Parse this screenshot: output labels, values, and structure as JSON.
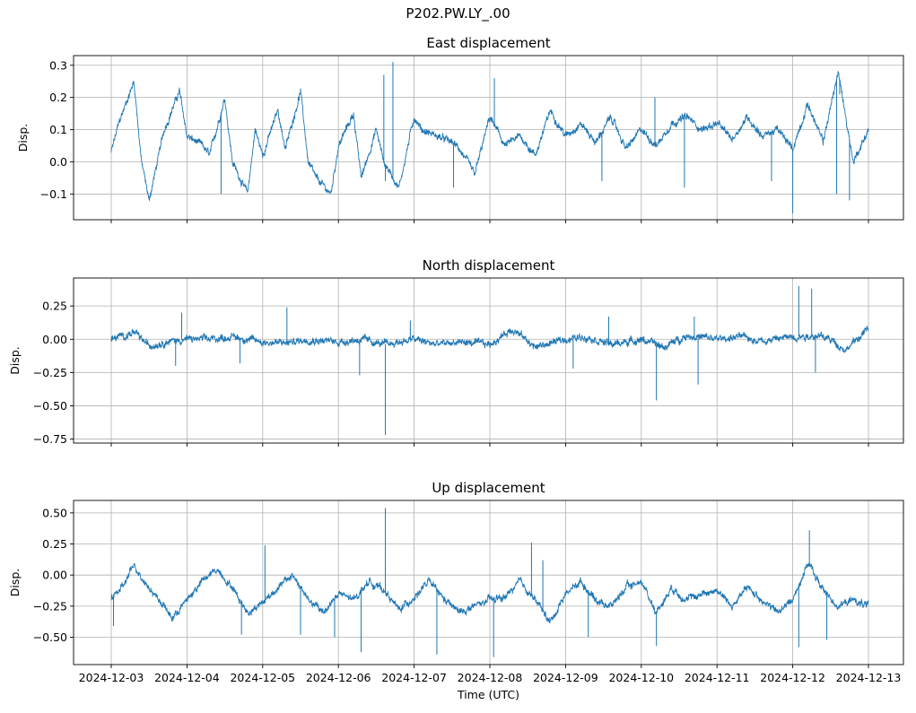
{
  "suptitle": "P202.PW.LY_.00",
  "chart_data": [
    {
      "type": "line",
      "title": "East displacement",
      "xlabel": "",
      "ylabel": "Disp.",
      "series_color": "#1f77b4",
      "grid": true,
      "ylim": [
        -0.18,
        0.33
      ],
      "yticks": [
        -0.1,
        0.0,
        0.1,
        0.2,
        0.3
      ],
      "ytick_labels": [
        "−0.1",
        "0.0",
        "0.1",
        "0.2",
        "0.3"
      ],
      "x_range_days": [
        0,
        10
      ],
      "anchor_days": [
        0,
        0.1,
        0.3,
        0.4,
        0.5,
        0.7,
        0.9,
        1.0,
        1.2,
        1.3,
        1.5,
        1.6,
        1.8,
        1.9,
        2.0,
        2.2,
        2.3,
        2.5,
        2.6,
        2.7,
        2.9,
        3.0,
        3.2,
        3.3,
        3.5,
        3.6,
        3.8,
        4.0,
        4.1,
        4.3,
        4.5,
        4.6,
        4.8,
        5.0,
        5.2,
        5.4,
        5.6,
        5.8,
        6.0,
        6.2,
        6.4,
        6.6,
        6.8,
        7.0,
        7.2,
        7.4,
        7.6,
        7.8,
        8.0,
        8.2,
        8.4,
        8.6,
        8.8,
        9.0,
        9.2,
        9.4,
        9.6,
        9.8,
        10.0
      ],
      "anchor_values": [
        0.03,
        0.12,
        0.25,
        0.0,
        -0.12,
        0.1,
        0.22,
        0.08,
        0.05,
        0.02,
        0.2,
        0.0,
        -0.1,
        0.1,
        0.02,
        0.16,
        0.04,
        0.22,
        0.0,
        -0.05,
        -0.1,
        0.05,
        0.15,
        -0.05,
        0.1,
        0.0,
        -0.08,
        0.14,
        0.1,
        0.08,
        0.06,
        0.04,
        -0.04,
        0.14,
        0.05,
        0.08,
        0.02,
        0.16,
        0.08,
        0.12,
        0.06,
        0.14,
        0.04,
        0.1,
        0.05,
        0.12,
        0.14,
        0.1,
        0.12,
        0.07,
        0.14,
        0.08,
        0.1,
        0.04,
        0.18,
        0.06,
        0.28,
        0.0,
        0.1
      ],
      "spikes": [
        [
          3.6,
          0.27
        ],
        [
          3.72,
          0.31
        ],
        [
          5.06,
          0.26
        ],
        [
          7.18,
          0.2
        ],
        [
          9.62,
          0.21
        ],
        [
          1.45,
          -0.1
        ],
        [
          3.62,
          -0.06
        ],
        [
          4.52,
          -0.08
        ],
        [
          6.48,
          -0.06
        ],
        [
          7.57,
          -0.08
        ],
        [
          8.72,
          -0.06
        ],
        [
          9.0,
          -0.16
        ],
        [
          9.58,
          -0.1
        ],
        [
          9.75,
          -0.12
        ]
      ]
    },
    {
      "type": "line",
      "title": "North displacement",
      "xlabel": "",
      "ylabel": "Disp.",
      "series_color": "#1f77b4",
      "grid": true,
      "ylim": [
        -0.78,
        0.46
      ],
      "yticks": [
        -0.75,
        -0.5,
        -0.25,
        0.0,
        0.25
      ],
      "ytick_labels": [
        "−0.75",
        "−0.50",
        "−0.25",
        "0.00",
        "0.25"
      ],
      "x_range_days": [
        0,
        10
      ],
      "anchor_days": [
        0,
        0.3,
        0.5,
        0.7,
        1.0,
        1.3,
        1.6,
        2.0,
        2.3,
        2.6,
        3.0,
        3.3,
        3.6,
        4.0,
        4.3,
        4.6,
        5.0,
        5.3,
        5.6,
        6.0,
        6.3,
        6.6,
        7.0,
        7.3,
        7.6,
        8.0,
        8.3,
        8.6,
        9.0,
        9.3,
        9.5,
        9.7,
        10.0
      ],
      "anchor_values": [
        0.0,
        0.05,
        -0.05,
        -0.02,
        0.0,
        0.0,
        0.02,
        -0.02,
        -0.03,
        0.0,
        -0.02,
        0.0,
        -0.04,
        0.0,
        -0.04,
        -0.02,
        -0.04,
        0.08,
        -0.06,
        0.0,
        0.02,
        -0.04,
        0.0,
        -0.06,
        0.03,
        0.0,
        0.02,
        -0.01,
        0.02,
        0.03,
        0.0,
        -0.08,
        0.08
      ],
      "spikes": [
        [
          0.93,
          0.2
        ],
        [
          2.32,
          0.24
        ],
        [
          3.95,
          0.14
        ],
        [
          6.57,
          0.17
        ],
        [
          7.7,
          0.17
        ],
        [
          9.08,
          0.4
        ],
        [
          9.25,
          0.38
        ],
        [
          0.85,
          -0.2
        ],
        [
          1.7,
          -0.18
        ],
        [
          3.28,
          -0.27
        ],
        [
          3.62,
          -0.72
        ],
        [
          7.2,
          -0.46
        ],
        [
          7.75,
          -0.34
        ],
        [
          6.1,
          -0.22
        ],
        [
          9.3,
          -0.25
        ]
      ]
    },
    {
      "type": "line",
      "title": "Up displacement",
      "xlabel": "Time (UTC)",
      "ylabel": "Disp.",
      "series_color": "#1f77b4",
      "grid": true,
      "ylim": [
        -0.72,
        0.6
      ],
      "yticks": [
        -0.5,
        -0.25,
        0.0,
        0.25,
        0.5
      ],
      "ytick_labels": [
        "−0.50",
        "−0.25",
        "0.00",
        "0.25",
        "0.50"
      ],
      "x_range_days": [
        0,
        10
      ],
      "x_tick_labels": [
        "2024-12-03",
        "2024-12-04",
        "2024-12-05",
        "2024-12-06",
        "2024-12-07",
        "2024-12-08",
        "2024-12-09",
        "2024-12-10",
        "2024-12-11",
        "2024-12-12",
        "2024-12-13"
      ],
      "anchor_days": [
        0,
        0.15,
        0.3,
        0.5,
        0.7,
        0.8,
        1.0,
        1.2,
        1.4,
        1.6,
        1.8,
        2.0,
        2.2,
        2.4,
        2.6,
        2.8,
        3.0,
        3.2,
        3.4,
        3.6,
        3.8,
        4.0,
        4.2,
        4.4,
        4.6,
        4.8,
        5.0,
        5.2,
        5.4,
        5.6,
        5.8,
        6.0,
        6.2,
        6.4,
        6.6,
        6.8,
        7.0,
        7.2,
        7.4,
        7.6,
        7.8,
        8.0,
        8.2,
        8.4,
        8.6,
        8.8,
        9.0,
        9.2,
        9.4,
        9.6,
        9.8,
        10.0
      ],
      "anchor_values": [
        -0.18,
        -0.1,
        0.08,
        -0.1,
        -0.25,
        -0.35,
        -0.2,
        -0.05,
        0.05,
        -0.1,
        -0.3,
        -0.22,
        -0.1,
        0.0,
        -0.2,
        -0.3,
        -0.15,
        -0.2,
        -0.05,
        -0.12,
        -0.28,
        -0.18,
        -0.05,
        -0.2,
        -0.3,
        -0.25,
        -0.2,
        -0.18,
        -0.05,
        -0.2,
        -0.38,
        -0.15,
        -0.05,
        -0.2,
        -0.25,
        -0.1,
        -0.05,
        -0.3,
        -0.1,
        -0.2,
        -0.15,
        -0.12,
        -0.25,
        -0.1,
        -0.2,
        -0.3,
        -0.2,
        0.1,
        -0.12,
        -0.25,
        -0.2,
        -0.25
      ],
      "spikes": [
        [
          3.62,
          0.54
        ],
        [
          2.03,
          0.24
        ],
        [
          5.55,
          0.26
        ],
        [
          5.7,
          0.12
        ],
        [
          9.22,
          0.36
        ],
        [
          0.03,
          -0.41
        ],
        [
          1.72,
          -0.48
        ],
        [
          2.5,
          -0.48
        ],
        [
          2.95,
          -0.5
        ],
        [
          3.3,
          -0.62
        ],
        [
          4.3,
          -0.64
        ],
        [
          5.05,
          -0.66
        ],
        [
          6.3,
          -0.5
        ],
        [
          7.2,
          -0.57
        ],
        [
          9.08,
          -0.58
        ],
        [
          9.45,
          -0.52
        ]
      ]
    }
  ]
}
